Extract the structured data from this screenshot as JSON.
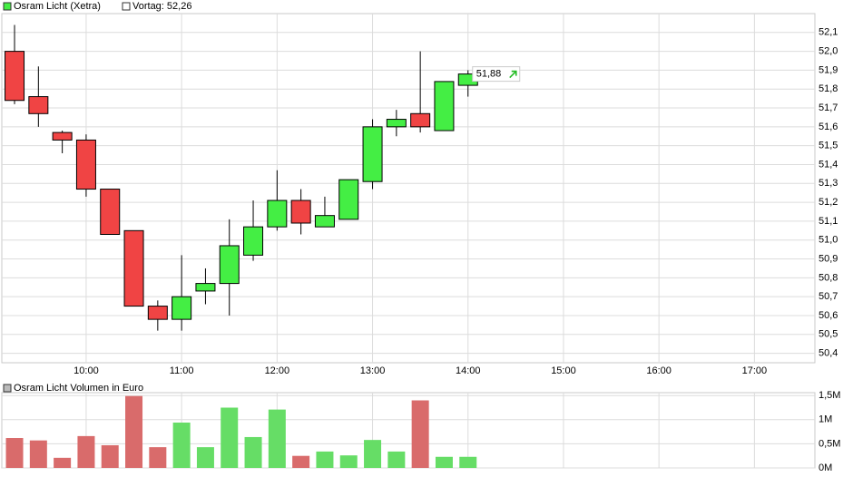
{
  "chart_data": [
    {
      "type": "candlestick",
      "series": [
        {
          "name": "Osram Licht (Xetra)",
          "up_color": "#44ee44",
          "down_color": "#f04444",
          "open": [
            52.0,
            51.76,
            51.57,
            51.53,
            51.27,
            51.05,
            50.65,
            50.58,
            50.73,
            50.77,
            50.92,
            51.07,
            51.21,
            51.07,
            51.11,
            51.31,
            51.6,
            51.67,
            51.58,
            51.82
          ],
          "high": [
            52.14,
            51.92,
            51.58,
            51.56,
            51.27,
            51.05,
            50.68,
            50.92,
            50.85,
            51.11,
            51.21,
            51.37,
            51.27,
            51.23,
            51.32,
            51.64,
            51.69,
            52.0,
            51.84,
            51.9
          ],
          "low": [
            51.72,
            51.6,
            51.46,
            51.23,
            51.03,
            50.65,
            50.52,
            50.52,
            50.66,
            50.6,
            50.89,
            51.05,
            51.03,
            51.07,
            51.11,
            51.27,
            51.55,
            51.57,
            51.58,
            51.76
          ],
          "close": [
            51.74,
            51.67,
            51.53,
            51.27,
            51.03,
            50.65,
            50.58,
            50.7,
            50.77,
            50.97,
            51.07,
            51.21,
            51.09,
            51.13,
            51.32,
            51.6,
            51.64,
            51.6,
            51.84,
            51.88
          ]
        }
      ],
      "reference": "Vortag: 52,26",
      "last_label": {
        "value": 51.88,
        "label": "51,88"
      },
      "x": [
        "09:15",
        "09:30",
        "09:45",
        "10:00",
        "10:15",
        "10:30",
        "10:45",
        "11:00",
        "11:15",
        "11:30",
        "11:45",
        "12:00",
        "12:15",
        "12:30",
        "12:45",
        "13:00",
        "13:15",
        "13:30",
        "13:45",
        "14:00"
      ],
      "xlim": [
        "09:07",
        "17:38"
      ],
      "xticks": [
        "10:00",
        "11:00",
        "12:00",
        "13:00",
        "14:00",
        "15:00",
        "16:00",
        "17:00"
      ],
      "ylim": [
        50.35,
        52.2
      ],
      "yticks": [
        {
          "value": 50.4,
          "label": "50,4"
        },
        {
          "value": 50.5,
          "label": "50,5"
        },
        {
          "value": 50.6,
          "label": "50,6"
        },
        {
          "value": 50.7,
          "label": "50,7"
        },
        {
          "value": 50.8,
          "label": "50,8"
        },
        {
          "value": 50.9,
          "label": "50,9"
        },
        {
          "value": 51.0,
          "label": "51,0"
        },
        {
          "value": 51.1,
          "label": "51,1"
        },
        {
          "value": 51.2,
          "label": "51,2"
        },
        {
          "value": 51.3,
          "label": "51,3"
        },
        {
          "value": 51.4,
          "label": "51,4"
        },
        {
          "value": 51.5,
          "label": "51,5"
        },
        {
          "value": 51.6,
          "label": "51,6"
        },
        {
          "value": 51.7,
          "label": "51,7"
        },
        {
          "value": 51.8,
          "label": "51,8"
        },
        {
          "value": 51.9,
          "label": "51,9"
        },
        {
          "value": 52.0,
          "label": "52,0"
        },
        {
          "value": 52.1,
          "label": "52,1"
        }
      ],
      "grid": true
    },
    {
      "type": "bar",
      "series": [
        {
          "name": "Osram Licht Volumen in Euro",
          "up_color": "#66dd66",
          "down_color": "#d96b6b",
          "values": [
            620000,
            570000,
            210000,
            660000,
            470000,
            1490000,
            430000,
            940000,
            430000,
            1250000,
            640000,
            1210000,
            250000,
            340000,
            260000,
            580000,
            340000,
            1400000,
            230000,
            230000
          ]
        }
      ],
      "x": [
        "09:15",
        "09:30",
        "09:45",
        "10:00",
        "10:15",
        "10:30",
        "10:45",
        "11:00",
        "11:15",
        "11:30",
        "11:45",
        "12:00",
        "12:15",
        "12:30",
        "12:45",
        "13:00",
        "13:15",
        "13:30",
        "13:45",
        "14:00"
      ],
      "xlim": [
        "09:07",
        "17:38"
      ],
      "xticks": [
        "10:00",
        "11:00",
        "12:00",
        "13:00",
        "14:00",
        "15:00",
        "16:00",
        "17:00"
      ],
      "ylim": [
        0,
        1560000
      ],
      "yticks": [
        {
          "value": 0,
          "label": "0M"
        },
        {
          "value": 500000,
          "label": "0,5M"
        },
        {
          "value": 1000000,
          "label": "1M"
        },
        {
          "value": 1500000,
          "label": "1,5M"
        }
      ],
      "grid": true
    }
  ]
}
